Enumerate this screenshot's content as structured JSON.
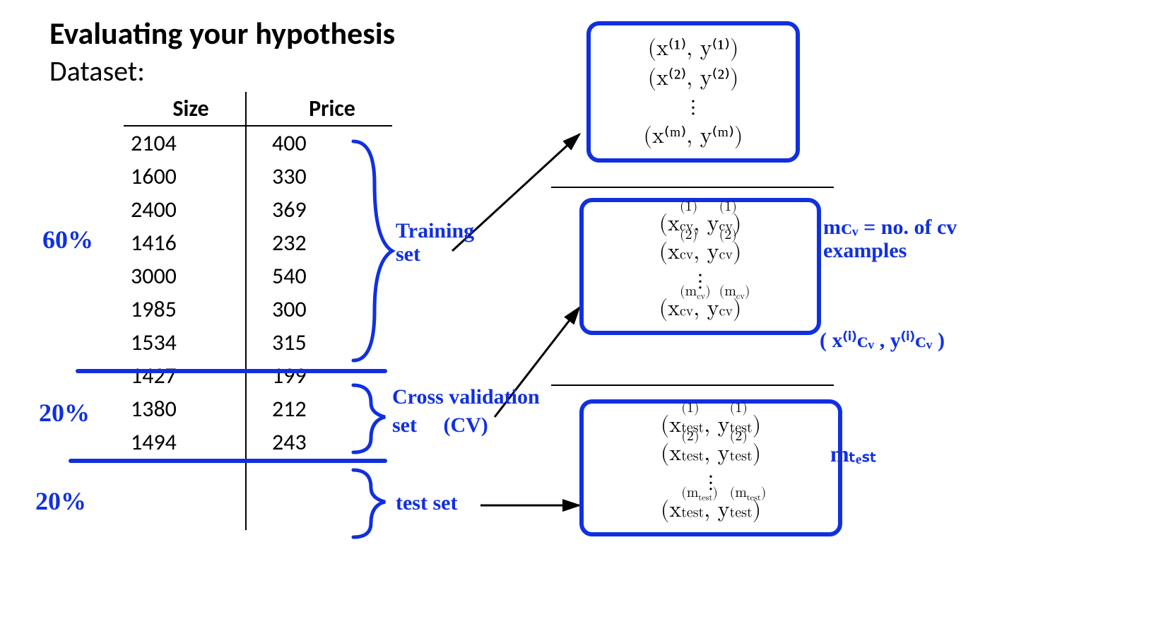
{
  "colors": {
    "ink": "#1030e0",
    "text": "#000000",
    "bg": "#ffffff"
  },
  "title": "Evaluating your hypothesis",
  "subtitle": "Dataset:",
  "table": {
    "columns": [
      "Size",
      "Price"
    ],
    "rows": [
      [
        "2104",
        "400"
      ],
      [
        "1600",
        "330"
      ],
      [
        "2400",
        "369"
      ],
      [
        "1416",
        "232"
      ],
      [
        "3000",
        "540"
      ],
      [
        "1985",
        "300"
      ],
      [
        "1534",
        "315"
      ],
      [
        "1427",
        "199"
      ],
      [
        "1380",
        "212"
      ],
      [
        "1494",
        "243"
      ]
    ],
    "split_after_rows": [
      6,
      8
    ],
    "percents": {
      "train": "60%",
      "cv": "20%",
      "test": "20%"
    },
    "labels": {
      "train": "Training set",
      "cv_line1": "Cross validation",
      "cv_line2": "set     (CV)",
      "test": "test set"
    }
  },
  "rightboxes": {
    "train": {
      "l1": "(x⁽¹⁾, y⁽¹⁾)",
      "l2": "(x⁽²⁾, y⁽²⁾)",
      "dots": "⋮",
      "lm": "(x⁽ᵐ⁾, y⁽ᵐ⁾)"
    },
    "cv": {
      "l1_html": "(x<span class='supsub'><span class='sup'>(1)</span><span class='sub'>cv</span></span>, y<span class='supsub'><span class='sup'>(1)</span><span class='sub'>cv</span></span>)",
      "l2_html": "(x<span class='supsub'><span class='sup'>(2)</span><span class='sub'>cv</span></span>, y<span class='supsub'><span class='sup'>(2)</span><span class='sub'>cv</span></span>)",
      "dots": "⋮",
      "lm_html": "(x<span class='supsub'><span class='sup'>(m<sub>cv</sub>)</span><span class='sub'>cv</span></span>, y<span class='supsub'><span class='sup'>(m<sub>cv</sub>)</span><span class='sub'>cv</span></span>)"
    },
    "test": {
      "l1_html": "(x<span class='supsub'><span class='sup'>(1)</span><span class='sub'>test</span></span>, y<span class='supsub'><span class='sup'>(1)</span><span class='sub'>test</span></span>)",
      "l2_html": "(x<span class='supsub'><span class='sup'>(2)</span><span class='sub'>test</span></span>, y<span class='supsub'><span class='sup'>(2)</span><span class='sub'>test</span></span>)",
      "dots": "⋮",
      "lm_html": "(x<span class='supsub'><span class='sup'>(m<sub>test</sub>)</span><span class='sub'>test</span></span>, y<span class='supsub'><span class='sup'>(m<sub>test</sub>)</span><span class='sub'>test</span></span>)"
    }
  },
  "right_annotations": {
    "mcv": "mᴄᵥ = no. of cv examples",
    "xcviycvi": "( x⁽ⁱ⁾ᴄᵥ , y⁽ⁱ⁾ᴄᵥ )",
    "mtest": "mₜₑₛₜ"
  }
}
